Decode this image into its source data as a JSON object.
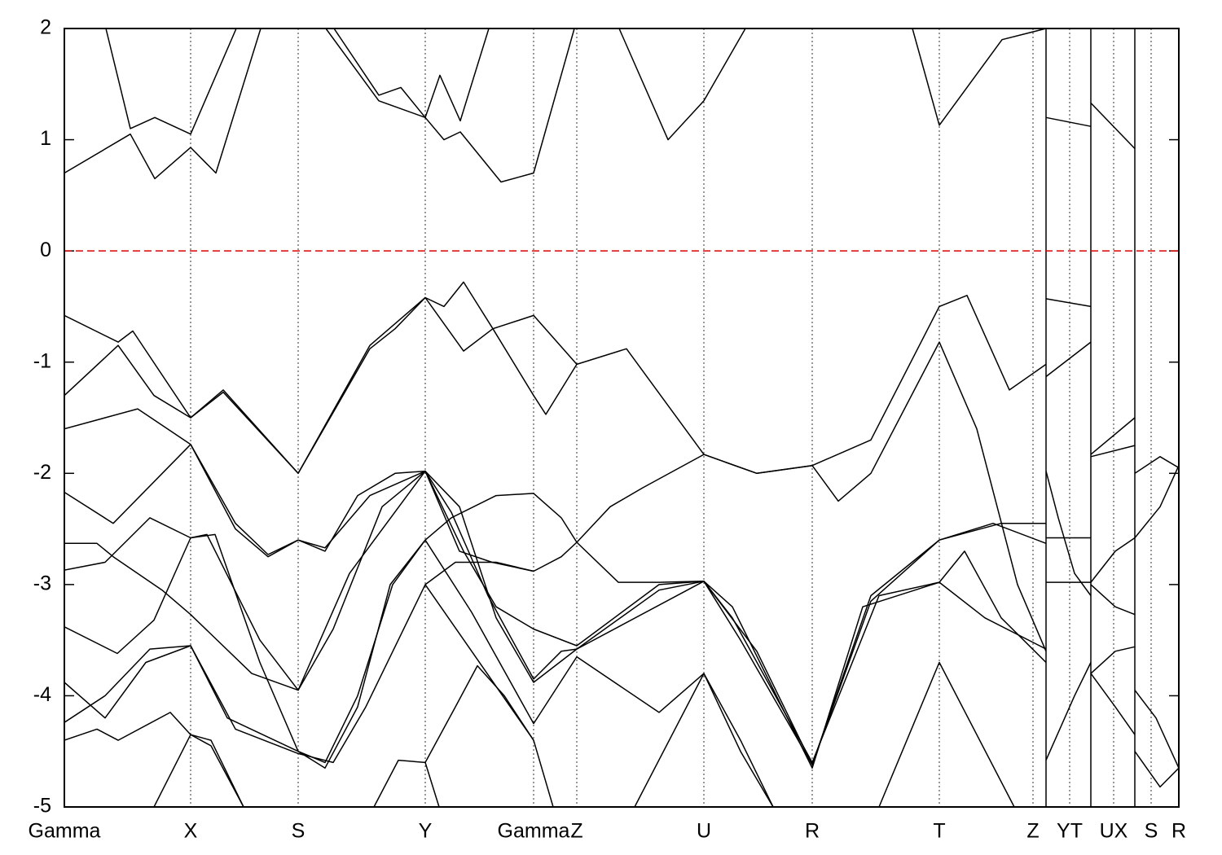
{
  "chart_data": {
    "type": "line",
    "line_color": "#000000",
    "xlim": [
      0,
      13.68
    ],
    "ylim": [
      -5,
      2
    ],
    "yticks": [
      -5,
      -4,
      -3,
      -2,
      -1,
      0,
      1,
      2
    ],
    "xticks": [
      {
        "value": 0,
        "label": "Gamma"
      },
      {
        "value": 1.55,
        "label": "X"
      },
      {
        "value": 2.87,
        "label": "S"
      },
      {
        "value": 4.43,
        "label": "Y"
      },
      {
        "value": 5.76,
        "label": "Gamma"
      },
      {
        "value": 6.29,
        "label": "Z"
      },
      {
        "value": 7.85,
        "label": "U"
      },
      {
        "value": 9.18,
        "label": "R"
      },
      {
        "value": 10.74,
        "label": "T"
      },
      {
        "value": 11.89,
        "label": "Z"
      },
      {
        "value": 12.34,
        "label": "YT"
      },
      {
        "value": 12.88,
        "label": "UX"
      },
      {
        "value": 13.34,
        "label": "S"
      },
      {
        "value": 13.68,
        "label": "R"
      }
    ],
    "grid": true,
    "breaks": [
      12.05,
      12.6,
      13.14
    ],
    "fermi_level": 0,
    "fermi_color": "#dd0000",
    "series": [
      {
        "x": [
          0,
          0.81,
          1.11,
          1.55,
          1.86,
          2.41
        ],
        "values": [
          0.7,
          1.05,
          0.65,
          0.93,
          0.7,
          2
        ]
      },
      {
        "x": [
          3.21,
          3.86,
          4.43,
          4.66,
          4.86,
          5.36,
          5.76,
          6.26
        ],
        "values": [
          2,
          1.35,
          1.2,
          1.0,
          1.07,
          0.62,
          0.7,
          2
        ]
      },
      {
        "x": [
          6.81,
          7.41,
          7.85,
          8.36
        ],
        "values": [
          2,
          1.0,
          1.35,
          2
        ]
      },
      {
        "x": [
          10.41,
          10.74,
          11.51,
          12.05
        ],
        "values": [
          2,
          1.13,
          1.9,
          2
        ]
      },
      {
        "x": [
          0.51,
          0.81,
          1.11,
          1.55,
          2.11
        ],
        "values": [
          2,
          1.1,
          1.2,
          1.05,
          2
        ]
      },
      {
        "x": [
          3.31,
          3.86,
          4.13,
          4.43,
          4.61,
          4.86,
          5.21
        ],
        "values": [
          2,
          1.4,
          1.47,
          1.2,
          1.58,
          1.17,
          2
        ]
      },
      {
        "x": [
          12.05,
          12.6
        ],
        "values": [
          1.2,
          1.12
        ]
      },
      {
        "x": [
          12.6,
          13.14
        ],
        "values": [
          1.33,
          0.92
        ]
      },
      {
        "x": [
          0,
          0.66,
          0.84,
          1.55,
          1.95,
          2.87,
          3.75,
          4.43,
          4.66,
          4.9,
          5.26,
          5.76,
          6.29,
          6.9,
          7.85,
          8.5,
          9.18,
          9.9,
          10.74,
          11.08,
          11.6,
          12.05
        ],
        "values": [
          -0.58,
          -0.82,
          -0.72,
          -1.5,
          -1.27,
          -2.0,
          -0.85,
          -0.42,
          -0.5,
          -0.28,
          -0.7,
          -0.58,
          -1.02,
          -0.88,
          -1.83,
          -2.0,
          -1.93,
          -1.7,
          -0.5,
          -0.4,
          -1.25,
          -1.02
        ]
      },
      {
        "x": [
          0,
          0.66,
          1.1,
          1.55,
          1.95,
          2.87,
          3.75,
          4.06,
          4.43,
          4.9,
          5.26,
          5.76,
          5.91,
          6.29
        ],
        "values": [
          -1.3,
          -0.85,
          -1.3,
          -1.5,
          -1.25,
          -2.0,
          -0.88,
          -0.7,
          -0.42,
          -0.9,
          -0.7,
          -1.3,
          -1.47,
          -1.02
        ]
      },
      {
        "x": [
          0,
          0.9,
          1.55,
          2.1,
          2.5,
          2.87,
          3.2,
          3.6,
          4.06,
          4.43,
          4.85,
          5.3,
          5.76,
          6.29,
          7.3,
          7.85,
          8.5,
          9.18,
          9.9,
          10.74,
          11.5,
          12.05
        ],
        "values": [
          -1.6,
          -1.42,
          -1.74,
          -2.5,
          -2.75,
          -2.6,
          -2.7,
          -2.2,
          -2.0,
          -1.98,
          -2.3,
          -3.3,
          -3.88,
          -3.58,
          -3.05,
          -2.97,
          -3.6,
          -4.62,
          -3.15,
          -2.6,
          -2.45,
          -2.45
        ]
      },
      {
        "x": [
          0,
          0.6,
          1.55,
          2.1,
          2.5,
          2.87,
          3.2,
          3.75,
          4.43,
          4.75,
          5.2,
          5.76,
          6.1,
          6.29,
          7.85,
          8.2,
          9.18,
          9.8,
          10.74,
          11.3,
          12.05
        ],
        "values": [
          -2.17,
          -2.45,
          -1.74,
          -2.45,
          -2.73,
          -2.6,
          -2.67,
          -2.2,
          -1.98,
          -2.35,
          -3.1,
          -3.85,
          -3.6,
          -3.58,
          -2.97,
          -3.2,
          -4.65,
          -3.2,
          -2.98,
          -3.3,
          -3.58
        ]
      },
      {
        "x": [
          0,
          0.4,
          0.6,
          1.2,
          1.55,
          2.3,
          2.87,
          3.3,
          3.9,
          4.43,
          4.9,
          5.3,
          5.76,
          6.29,
          7.3,
          7.85,
          8.2,
          9.18,
          10.0,
          10.74,
          11.05,
          11.5,
          12.05
        ],
        "values": [
          -2.63,
          -2.63,
          -2.75,
          -3.05,
          -3.27,
          -3.8,
          -3.95,
          -3.4,
          -2.3,
          -1.98,
          -2.7,
          -3.2,
          -3.4,
          -3.55,
          -3.0,
          -2.97,
          -3.3,
          -4.6,
          -3.1,
          -2.98,
          -2.7,
          -3.3,
          -3.7
        ]
      },
      {
        "x": [
          0,
          0.5,
          1.05,
          1.55,
          1.75,
          2.4,
          2.87,
          3.5,
          4.43,
          4.85,
          5.25,
          5.76,
          6.1,
          6.29,
          6.8,
          7.3,
          7.85,
          8.3,
          9.18,
          9.9,
          10.74,
          11.4,
          12.05
        ],
        "values": [
          -2.87,
          -2.8,
          -2.4,
          -2.58,
          -2.55,
          -3.5,
          -3.95,
          -2.9,
          -1.98,
          -2.7,
          -2.8,
          -2.88,
          -2.75,
          -2.62,
          -2.98,
          -2.98,
          -2.97,
          -3.5,
          -4.62,
          -3.1,
          -2.6,
          -2.45,
          -2.63
        ]
      },
      {
        "x": [
          0,
          0.65,
          1.1,
          1.55,
          1.85,
          2.4,
          2.87,
          3.2,
          3.6,
          4.0,
          4.43,
          4.75,
          5.3,
          5.76,
          6.1,
          6.29,
          6.7,
          7.1,
          7.85,
          8.5,
          9.18,
          9.5,
          9.9,
          10.74,
          11.2,
          11.7,
          12.05
        ],
        "values": [
          -3.38,
          -3.62,
          -3.32,
          -2.58,
          -2.55,
          -3.7,
          -4.5,
          -4.65,
          -4.1,
          -3.0,
          -2.6,
          -2.4,
          -2.2,
          -2.18,
          -2.4,
          -2.62,
          -2.3,
          -2.13,
          -1.83,
          -2.0,
          -1.93,
          -2.25,
          -2.0,
          -0.82,
          -1.6,
          -3.0,
          -3.6
        ]
      },
      {
        "x": [
          0,
          0.5,
          1.0,
          1.55,
          2.0,
          2.87,
          3.2,
          3.6,
          4.03,
          4.43,
          5.0,
          5.76,
          6.29,
          7.3,
          7.85,
          8.3,
          8.7
        ],
        "values": [
          -3.88,
          -4.2,
          -3.7,
          -3.55,
          -4.2,
          -4.5,
          -4.6,
          -4.0,
          -3.0,
          -2.6,
          -3.25,
          -4.25,
          -3.65,
          -4.15,
          -3.8,
          -4.5,
          -5
        ]
      },
      {
        "x": [
          10.0,
          10.74,
          11.66
        ],
        "values": [
          -5,
          -3.7,
          -5
        ]
      },
      {
        "x": [
          0,
          0.5,
          1.05,
          1.55,
          2.1,
          2.87,
          3.3,
          3.7,
          4.43,
          4.8,
          5.3,
          5.76
        ],
        "values": [
          -4.24,
          -4.0,
          -3.58,
          -3.55,
          -4.3,
          -4.52,
          -4.6,
          -4.1,
          -3.0,
          -2.8,
          -2.8,
          -2.88
        ]
      },
      {
        "x": [
          0,
          0.4,
          0.66,
          1.3,
          1.55,
          1.8,
          2.2
        ],
        "values": [
          -4.4,
          -4.3,
          -4.4,
          -4.15,
          -4.35,
          -4.4,
          -5
        ]
      },
      {
        "x": [
          4.43,
          5.0,
          5.76,
          6.0
        ],
        "values": [
          -3.0,
          -3.6,
          -4.4,
          -5
        ]
      },
      {
        "x": [
          3.8,
          4.1,
          4.43,
          4.6
        ],
        "values": [
          -5,
          -4.58,
          -4.6,
          -5
        ]
      },
      {
        "x": [
          4.43,
          4.8,
          5.07,
          5.4,
          5.76
        ],
        "values": [
          -4.6,
          -4.1,
          -3.73,
          -4.0,
          -4.4
        ]
      },
      {
        "x": [
          7.0,
          7.85,
          8.3,
          8.7
        ],
        "values": [
          -5,
          -3.8,
          -4.4,
          -5
        ]
      },
      {
        "x": [
          1.1,
          1.55,
          1.8,
          2.2
        ],
        "values": [
          -5,
          -4.35,
          -4.45,
          -5
        ]
      },
      {
        "x": [
          12.05,
          12.6
        ],
        "values": [
          -0.43,
          -0.5
        ]
      },
      {
        "x": [
          12.05,
          12.6
        ],
        "values": [
          -1.13,
          -0.82
        ]
      },
      {
        "x": [
          12.05,
          12.2,
          12.4,
          12.6
        ],
        "values": [
          -1.98,
          -2.4,
          -2.9,
          -3.1
        ]
      },
      {
        "x": [
          12.05,
          12.6
        ],
        "values": [
          -2.58,
          -2.58
        ]
      },
      {
        "x": [
          12.05,
          12.6
        ],
        "values": [
          -2.98,
          -2.98
        ]
      },
      {
        "x": [
          12.05,
          12.4,
          12.6
        ],
        "values": [
          -4.58,
          -4.0,
          -3.7
        ]
      },
      {
        "x": [
          12.6,
          13.14
        ],
        "values": [
          -1.83,
          -1.5
        ]
      },
      {
        "x": [
          12.6,
          13.14
        ],
        "values": [
          -1.85,
          -1.75
        ]
      },
      {
        "x": [
          12.6,
          12.9,
          13.14
        ],
        "values": [
          -2.98,
          -2.7,
          -2.58
        ]
      },
      {
        "x": [
          12.6,
          12.9,
          13.14
        ],
        "values": [
          -3.0,
          -3.2,
          -3.27
        ]
      },
      {
        "x": [
          12.6,
          12.9,
          13.14
        ],
        "values": [
          -3.8,
          -3.6,
          -3.56
        ]
      },
      {
        "x": [
          12.6,
          12.9,
          13.14
        ],
        "values": [
          -3.8,
          -4.1,
          -4.35
        ]
      },
      {
        "x": [
          13.14,
          13.45,
          13.68
        ],
        "values": [
          -2.0,
          -1.85,
          -1.95
        ]
      },
      {
        "x": [
          13.14,
          13.45,
          13.68
        ],
        "values": [
          -2.58,
          -2.3,
          -1.93
        ]
      },
      {
        "x": [
          13.14,
          13.4,
          13.68
        ],
        "values": [
          -3.95,
          -4.2,
          -4.65
        ]
      },
      {
        "x": [
          13.14,
          13.45,
          13.68
        ],
        "values": [
          -4.5,
          -4.82,
          -4.65
        ]
      }
    ]
  }
}
